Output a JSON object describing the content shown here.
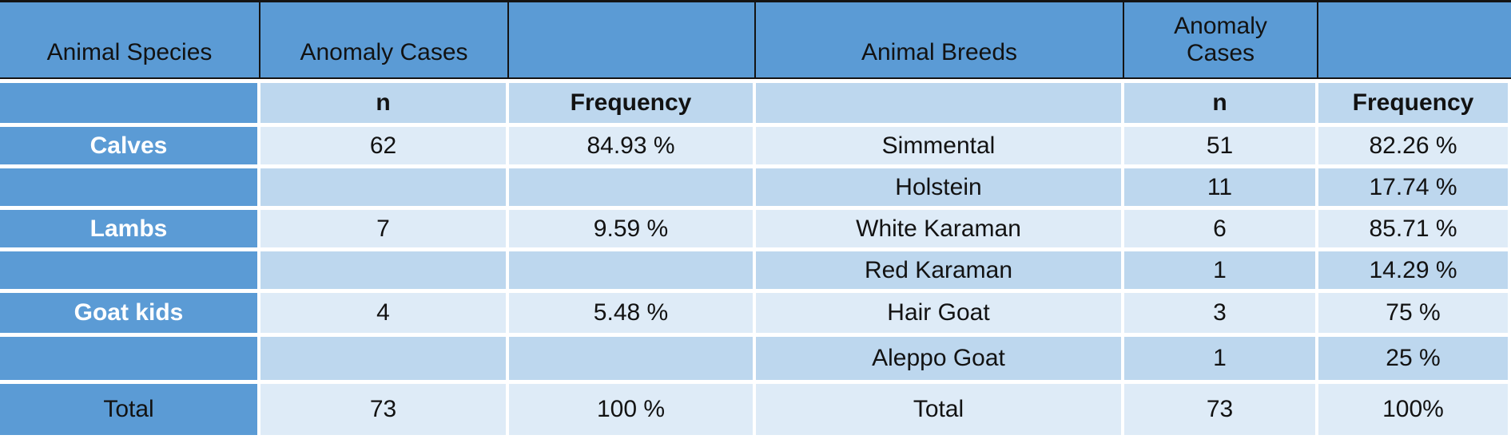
{
  "table": {
    "header_row1": [
      "Animal Species",
      "Anomaly Cases",
      "",
      "Animal Breeds",
      "Anomaly Cases",
      ""
    ],
    "header_row2": [
      "",
      "n",
      "Frequency",
      "",
      "n",
      "Frequency"
    ],
    "rows": [
      {
        "species": "Calves",
        "n": "62",
        "freq": "84.93 %",
        "breed": "Simmental",
        "breed_n": "51",
        "breed_freq": "82.26 %"
      },
      {
        "species": "",
        "n": "",
        "freq": "",
        "breed": "Holstein",
        "breed_n": "11",
        "breed_freq": "17.74 %"
      },
      {
        "species": "Lambs",
        "n": "7",
        "freq": "9.59 %",
        "breed": "White Karaman",
        "breed_n": "6",
        "breed_freq": "85.71 %"
      },
      {
        "species": "",
        "n": "",
        "freq": "",
        "breed": "Red Karaman",
        "breed_n": "1",
        "breed_freq": "14.29 %"
      },
      {
        "species": "Goat kids",
        "n": "4",
        "freq": "5.48 %",
        "breed": "Hair Goat",
        "breed_n": "3",
        "breed_freq": "75 %"
      },
      {
        "species": "",
        "n": "",
        "freq": "",
        "breed": "Aleppo Goat",
        "breed_n": "1",
        "breed_freq": "25 %"
      }
    ],
    "total_row": {
      "species": "Total",
      "n": "73",
      "freq": "100 %",
      "breed": "Total",
      "breed_n": "73",
      "breed_freq": "100%"
    }
  },
  "colors": {
    "header_blue": "#5b9bd5",
    "band_light": "#deebf7",
    "band_dark": "#bdd7ee",
    "species_text": "#ffffff",
    "text_dark": "#121212",
    "line_black": "#141414"
  }
}
